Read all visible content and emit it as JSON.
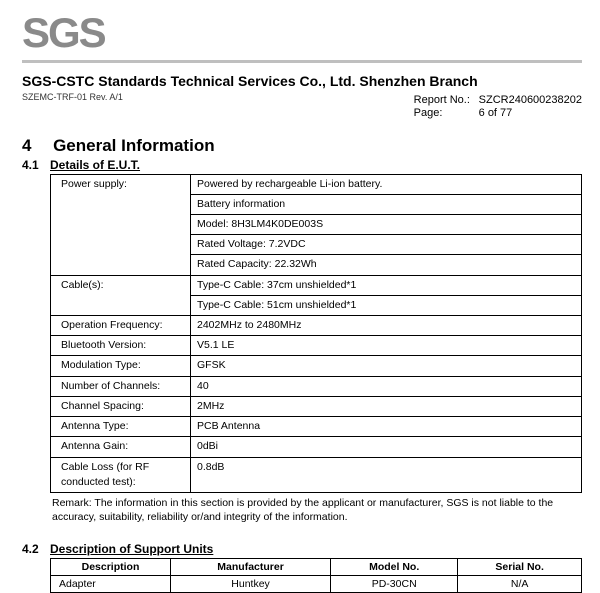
{
  "logo_text": "SGS",
  "company": "SGS-CSTC Standards Technical Services Co., Ltd. Shenzhen Branch",
  "doc_ref": "SZEMC-TRF-01  Rev. A/1",
  "report_no_label": "Report No.:",
  "report_no": "SZCR240600238202",
  "page_label": "Page:",
  "page_value": "6 of 77",
  "section4_num": "4",
  "section4_title": "General Information",
  "sub41_num": "4.1",
  "sub41_title": "Details of E.U.T.",
  "eut": {
    "power_supply_label": "Power supply:",
    "power_supply_lines": [
      "Powered by rechargeable Li-ion battery.",
      "Battery information",
      "Model: 8H3LM4K0DE003S",
      "Rated Voltage: 7.2VDC",
      "Rated Capacity: 22.32Wh"
    ],
    "cables_label": "Cable(s):",
    "cables_lines": [
      "Type-C Cable: 37cm unshielded*1",
      "Type-C Cable: 51cm unshielded*1"
    ],
    "op_freq_label": "Operation Frequency:",
    "op_freq": "2402MHz to 2480MHz",
    "bt_label": "Bluetooth Version:",
    "bt": "V5.1 LE",
    "mod_label": "Modulation Type:",
    "mod": "GFSK",
    "ch_label": "Number of Channels:",
    "ch": "40",
    "spacing_label": "Channel Spacing:",
    "spacing": "2MHz",
    "ant_label": "Antenna Type:",
    "ant": "PCB Antenna",
    "gain_label": "Antenna Gain:",
    "gain": "0dBi",
    "loss_label": "Cable Loss (for RF conducted test):",
    "loss": "0.8dB"
  },
  "remark": "Remark: The information in this section is provided by the applicant or manufacturer, SGS is not liable to the accuracy, suitability, reliability or/and integrity of the information.",
  "sub42_num": "4.2",
  "sub42_title": "Description of Support Units",
  "support": {
    "headers": [
      "Description",
      "Manufacturer",
      "Model No.",
      "Serial No."
    ],
    "rows": [
      [
        "Adapter",
        "Huntkey",
        "PD-30CN",
        "N/A"
      ]
    ]
  }
}
